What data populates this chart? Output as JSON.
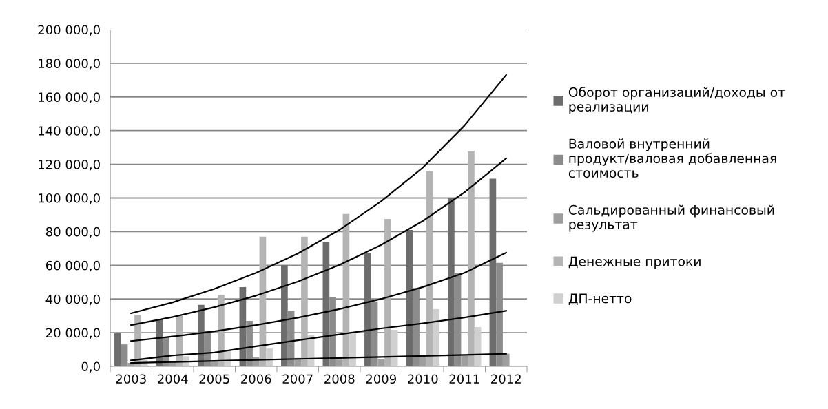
{
  "chart_data": {
    "type": "bar",
    "categories": [
      "2003",
      "2004",
      "2005",
      "2006",
      "2007",
      "2008",
      "2009",
      "2010",
      "2011",
      "2012"
    ],
    "series": [
      {
        "name": "Оборот организаций/доходы от реализации",
        "color": "#6d6d6d",
        "values": [
          20000,
          28000,
          36500,
          47000,
          60000,
          74000,
          67500,
          81000,
          100000,
          111500
        ]
      },
      {
        "name": "Валовой внутренний продукт/валовая добавленная стоимость",
        "color": "#8c8c8c",
        "values": [
          13000,
          17500,
          21000,
          27000,
          33000,
          41000,
          38500,
          46500,
          55500,
          61500
        ]
      },
      {
        "name": "Сальдированный финансовый результат",
        "color": "#9e9e9e",
        "values": [
          2000,
          2500,
          3000,
          5300,
          5000,
          4000,
          4500,
          6000,
          6500,
          7500
        ]
      },
      {
        "name": "Денежные притоки",
        "color": "#b4b4b4",
        "values": [
          30500,
          30000,
          42500,
          77000,
          77000,
          90500,
          87500,
          116000,
          128000,
          null
        ]
      },
      {
        "name": "ДП-нетто",
        "color": "#d0d0d0",
        "values": [
          4000,
          6000,
          9800,
          10600,
          18500,
          20000,
          21700,
          34000,
          23300,
          null
        ]
      },
      {
        "type": "line",
        "color": "#000000",
        "values": [
          31500,
          38000,
          46000,
          55500,
          67000,
          81000,
          98000,
          118000,
          143000,
          173000
        ]
      },
      {
        "type": "line",
        "color": "#000000",
        "values": [
          24500,
          29300,
          35100,
          42000,
          50300,
          60200,
          72100,
          86300,
          103300,
          123500
        ]
      },
      {
        "type": "line",
        "color": "#000000",
        "values": [
          15000,
          17700,
          20800,
          24500,
          28900,
          34000,
          40000,
          47100,
          55500,
          67500
        ]
      },
      {
        "type": "line",
        "color": "#000000",
        "values": [
          3500,
          6500,
          8200,
          11900,
          15500,
          19000,
          22500,
          25500,
          29000,
          33000
        ]
      },
      {
        "type": "line",
        "color": "#000000",
        "values": [
          2000,
          2600,
          3200,
          3800,
          4400,
          5000,
          5600,
          6200,
          6800,
          7500
        ]
      }
    ],
    "ylim": [
      0,
      200000
    ],
    "yticks": [
      {
        "value": 0,
        "label": "0,0"
      },
      {
        "value": 20000,
        "label": "20 000,0"
      },
      {
        "value": 40000,
        "label": "40 000,0"
      },
      {
        "value": 60000,
        "label": "60 000,0"
      },
      {
        "value": 80000,
        "label": "80 000,0"
      },
      {
        "value": 100000,
        "label": "100 000,0"
      },
      {
        "value": 120000,
        "label": "120 000,0"
      },
      {
        "value": 140000,
        "label": "140 000,0"
      },
      {
        "value": 160000,
        "label": "160 000,0"
      },
      {
        "value": 180000,
        "label": "180 000,0"
      },
      {
        "value": 200000,
        "label": "200 000,0"
      }
    ],
    "grid": "y",
    "legend": "right",
    "line_style": "solid",
    "marker": "none"
  }
}
